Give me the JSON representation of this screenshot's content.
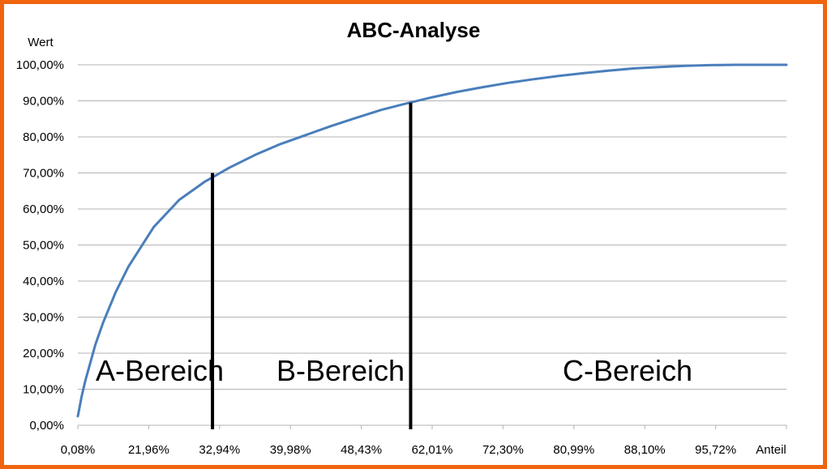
{
  "chart_data": {
    "type": "line",
    "title": "ABC-Analyse",
    "ylabel": "Wert",
    "xlabel": "Anteil",
    "ylim": [
      0,
      100
    ],
    "y_ticks": [
      "0,00%",
      "10,00%",
      "20,00%",
      "30,00%",
      "40,00%",
      "50,00%",
      "60,00%",
      "70,00%",
      "80,00%",
      "90,00%",
      "100,00%"
    ],
    "x_ticks": [
      "0,08%",
      "21,96%",
      "32,94%",
      "39,98%",
      "48,43%",
      "62,01%",
      "72,30%",
      "80,99%",
      "88,10%",
      "95,72%"
    ],
    "grid": true,
    "series": [
      {
        "color": "#4a7ebb",
        "points": [
          [
            0.0,
            2.5
          ],
          [
            1.5,
            8
          ],
          [
            3,
            12.5
          ],
          [
            5,
            17.5
          ],
          [
            7,
            22.5
          ],
          [
            10,
            28.5
          ],
          [
            15,
            37
          ],
          [
            20,
            44
          ],
          [
            30,
            55
          ],
          [
            40,
            62.5
          ],
          [
            50,
            67.5
          ],
          [
            60,
            71.5
          ],
          [
            70,
            75
          ],
          [
            80,
            78
          ],
          [
            90,
            80.5
          ],
          [
            100,
            83
          ],
          [
            110,
            85.3
          ],
          [
            120,
            87.5
          ],
          [
            130,
            89.3
          ],
          [
            140,
            91
          ],
          [
            150,
            92.5
          ],
          [
            160,
            93.8
          ],
          [
            170,
            95
          ],
          [
            180,
            96
          ],
          [
            190,
            96.9
          ],
          [
            200,
            97.7
          ],
          [
            210,
            98.4
          ],
          [
            220,
            99
          ],
          [
            230,
            99.4
          ],
          [
            240,
            99.7
          ],
          [
            250,
            99.9
          ],
          [
            260,
            100
          ],
          [
            280,
            100
          ]
        ]
      }
    ],
    "divider_lines": [
      {
        "x": 53.2,
        "y": 70
      },
      {
        "x": 131.5,
        "y": 89.5
      }
    ],
    "regions": [
      "A-Bereich",
      "B-Bereich",
      "C-Bereich"
    ],
    "colors": {
      "frame": "#f0640f",
      "curve": "#4a7ebb",
      "grid": "#b3b3b3",
      "divider": "#000000"
    }
  }
}
